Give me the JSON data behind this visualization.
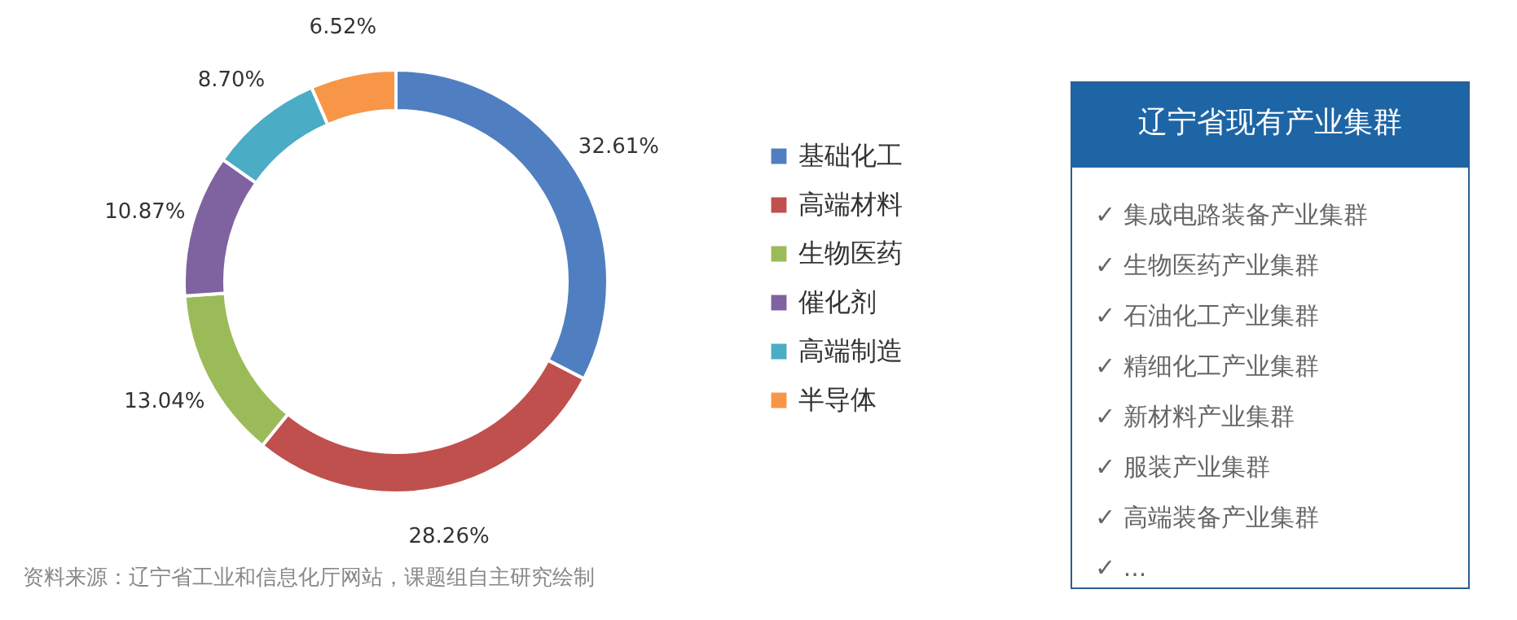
{
  "chart_data": [
    {
      "type": "donut",
      "categories": [
        "基础化工",
        "高端材料",
        "生物医药",
        "催化剂",
        "高端制造",
        "半导体"
      ],
      "values": [
        32.61,
        28.26,
        13.04,
        10.87,
        8.7,
        6.52
      ],
      "colors": [
        "#4f7fc1",
        "#c0504d",
        "#9bbb59",
        "#7f62a0",
        "#4bacc6",
        "#f79646"
      ],
      "value_labels": [
        "32.61%",
        "28.26%",
        "13.04%",
        "10.87%",
        "8.70%",
        "6.52%"
      ],
      "legend": "right",
      "annotations": [
        "资料来源：辽宁省工业和信息化厅网站，课题组自主研究绘制"
      ]
    },
    {
      "type": "other",
      "title": "辽宁省现有产业集群",
      "annotations": [
        "✓ 集成电路装备产业集群",
        "✓ 生物医药产业集群",
        "✓ 石油化工产业集群",
        "✓ 精细化工产业集群",
        "✓ 新材料产业集群",
        "✓ 服装产业集群",
        "✓ 高端装备产业集群",
        "✓ ..."
      ]
    }
  ]
}
